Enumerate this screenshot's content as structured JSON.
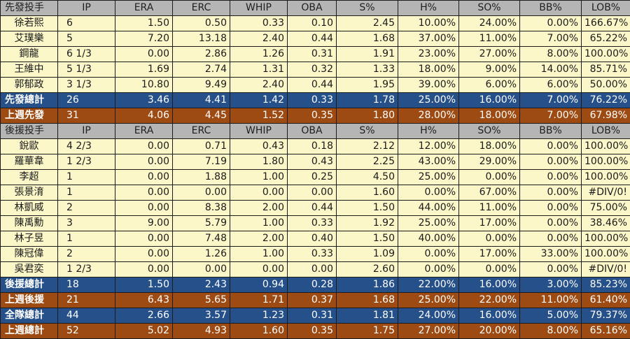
{
  "colors": {
    "header_bg": "#b5b5b5",
    "row_bg": "#fbf7c8",
    "total_blue": "#255089",
    "total_orange": "#9d4b12"
  },
  "columns": [
    "IP",
    "ERA",
    "ERC",
    "WHIP",
    "OBA",
    "S%",
    "H%",
    "SO%",
    "BB%",
    "LOB%"
  ],
  "rows": [
    {
      "type": "header",
      "cells": [
        "先發投手",
        "IP",
        "ERA",
        "ERC",
        "WHIP",
        "OBA",
        "S%",
        "H%",
        "SO%",
        "BB%",
        "LOB%"
      ]
    },
    {
      "type": "data",
      "cells": [
        "徐若熙",
        "6",
        "1.50",
        "0.50",
        "0.33",
        "0.10",
        "2.45",
        "10.00%",
        "24.00%",
        "0.00%",
        "166.67%"
      ]
    },
    {
      "type": "data",
      "cells": [
        "艾璞樂",
        "5",
        "7.20",
        "13.18",
        "2.40",
        "0.44",
        "1.68",
        "37.00%",
        "11.00%",
        "7.00%",
        "65.22%"
      ]
    },
    {
      "type": "data",
      "cells": [
        "鋼龍",
        "6 1/3",
        "0.00",
        "2.86",
        "1.26",
        "0.31",
        "1.91",
        "23.00%",
        "27.00%",
        "8.00%",
        "100.00%"
      ]
    },
    {
      "type": "data",
      "cells": [
        "王維中",
        "5 1/3",
        "1.69",
        "2.74",
        "1.31",
        "0.32",
        "1.33",
        "18.00%",
        "9.00%",
        "14.00%",
        "85.71%"
      ]
    },
    {
      "type": "data",
      "cells": [
        "郭郁政",
        "3 1/3",
        "10.80",
        "9.49",
        "2.40",
        "0.44",
        "1.95",
        "39.00%",
        "6.00%",
        "6.00%",
        "50.00%"
      ]
    },
    {
      "type": "blue",
      "cells": [
        "先發總計",
        "26",
        "3.46",
        "4.41",
        "1.42",
        "0.33",
        "1.78",
        "25.00%",
        "16.00%",
        "7.00%",
        "76.22%"
      ]
    },
    {
      "type": "orange",
      "cells": [
        "上週先發",
        "31",
        "4.06",
        "4.45",
        "1.52",
        "0.35",
        "1.80",
        "28.00%",
        "18.00%",
        "7.00%",
        "67.98%"
      ]
    },
    {
      "type": "header",
      "cells": [
        "後援投手",
        "IP",
        "ERA",
        "ERC",
        "WHIP",
        "OBA",
        "S%",
        "H%",
        "SO%",
        "BB%",
        "LOB%"
      ]
    },
    {
      "type": "data",
      "cells": [
        "銳歐",
        "4 2/3",
        "0.00",
        "0.71",
        "0.43",
        "0.18",
        "2.12",
        "12.00%",
        "18.00%",
        "0.00%",
        "100.00%"
      ]
    },
    {
      "type": "data",
      "cells": [
        "羅華韋",
        "1 2/3",
        "0.00",
        "7.19",
        "1.80",
        "0.43",
        "2.25",
        "43.00%",
        "29.00%",
        "0.00%",
        "100.00%"
      ]
    },
    {
      "type": "data",
      "cells": [
        "李超",
        "1",
        "0.00",
        "1.88",
        "1.00",
        "0.25",
        "4.50",
        "25.00%",
        "0.00%",
        "0.00%",
        "100.00%"
      ]
    },
    {
      "type": "data",
      "cells": [
        "張景淯",
        "1",
        "0.00",
        "0.00",
        "0.00",
        "0.00",
        "1.60",
        "0.00%",
        "67.00%",
        "0.00%",
        "#DIV/0!"
      ]
    },
    {
      "type": "data",
      "cells": [
        "林凱威",
        "2",
        "0.00",
        "8.38",
        "2.00",
        "0.44",
        "1.50",
        "44.00%",
        "11.00%",
        "0.00%",
        "75.00%"
      ]
    },
    {
      "type": "data",
      "cells": [
        "陳禹勳",
        "3",
        "9.00",
        "5.79",
        "1.00",
        "0.33",
        "1.92",
        "25.00%",
        "17.00%",
        "0.00%",
        "38.46%"
      ]
    },
    {
      "type": "data",
      "cells": [
        "林子昱",
        "1",
        "0.00",
        "7.48",
        "2.00",
        "0.40",
        "1.50",
        "40.00%",
        "0.00%",
        "0.00%",
        "100.00%"
      ]
    },
    {
      "type": "data",
      "cells": [
        "陳冠偉",
        "2",
        "0.00",
        "1.26",
        "1.00",
        "0.33",
        "1.09",
        "0.00%",
        "17.00%",
        "33.00%",
        "100.00%"
      ]
    },
    {
      "type": "data",
      "cells": [
        "吳君奕",
        "1 2/3",
        "0.00",
        "0.00",
        "0.00",
        "0.00",
        "2.60",
        "0.00%",
        "0.00%",
        "0.00%",
        "#DIV/0!"
      ]
    },
    {
      "type": "blue",
      "cells": [
        "後援總計",
        "18",
        "1.50",
        "2.43",
        "0.94",
        "0.28",
        "1.86",
        "22.00%",
        "16.00%",
        "3.00%",
        "85.23%"
      ]
    },
    {
      "type": "orange",
      "cells": [
        "上週後援",
        "21",
        "6.43",
        "5.65",
        "1.71",
        "0.37",
        "1.68",
        "25.00%",
        "22.00%",
        "11.00%",
        "61.40%"
      ]
    },
    {
      "type": "blue",
      "cells": [
        "全隊總計",
        "44",
        "2.66",
        "3.57",
        "1.23",
        "0.31",
        "1.81",
        "24.00%",
        "16.00%",
        "5.00%",
        "79.37%"
      ]
    },
    {
      "type": "orange",
      "cells": [
        "上週總計",
        "52",
        "5.02",
        "4.93",
        "1.60",
        "0.35",
        "1.75",
        "27.00%",
        "20.00%",
        "8.00%",
        "65.16%"
      ]
    }
  ]
}
